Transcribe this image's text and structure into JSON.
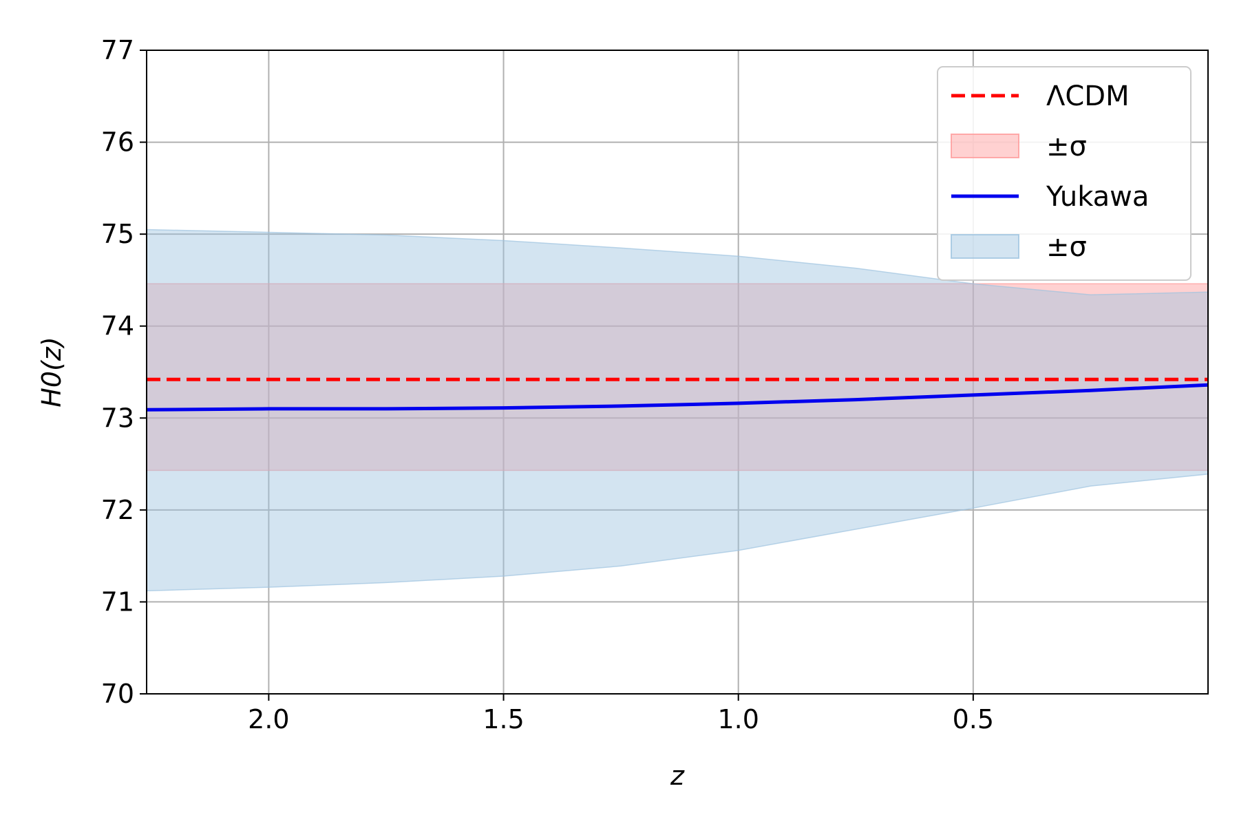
{
  "chart_data": {
    "type": "line",
    "xlabel": "z",
    "ylabel": "H0(z)",
    "x_inverted": true,
    "xlim": [
      2.26,
      0.0
    ],
    "ylim": [
      70,
      77
    ],
    "xticks": [
      2.0,
      1.5,
      1.0,
      0.5
    ],
    "xtick_labels": [
      "2.0",
      "1.5",
      "1.0",
      "0.5"
    ],
    "yticks": [
      70,
      71,
      72,
      73,
      74,
      75,
      76,
      77
    ],
    "ytick_labels": [
      "70",
      "71",
      "72",
      "73",
      "74",
      "75",
      "76",
      "77"
    ],
    "grid": true,
    "legend_position": "top-right",
    "series": [
      {
        "name": "ΛCDM",
        "kind": "line",
        "style": "dashed",
        "color": "#ff0000",
        "x": [
          2.26,
          0.0
        ],
        "y": [
          73.42,
          73.42
        ]
      },
      {
        "name": "±σ",
        "kind": "band",
        "color": "#ff9999",
        "x": [
          2.26,
          0.0
        ],
        "lower": [
          72.43,
          72.43
        ],
        "upper": [
          74.46,
          74.46
        ]
      },
      {
        "name": "Yukawa",
        "kind": "line",
        "style": "solid",
        "color": "#0000ee",
        "x": [
          2.26,
          2.0,
          1.75,
          1.5,
          1.25,
          1.0,
          0.75,
          0.5,
          0.25,
          0.0
        ],
        "y": [
          73.09,
          73.1,
          73.1,
          73.11,
          73.13,
          73.16,
          73.2,
          73.25,
          73.3,
          73.36
        ]
      },
      {
        "name": "±σ",
        "kind": "band",
        "color": "#9ec3e0",
        "x": [
          2.26,
          2.0,
          1.75,
          1.5,
          1.25,
          1.0,
          0.75,
          0.5,
          0.25,
          0.0
        ],
        "lower": [
          71.12,
          71.16,
          71.21,
          71.28,
          71.39,
          71.56,
          71.79,
          72.02,
          72.26,
          72.39
        ],
        "upper": [
          75.05,
          75.02,
          74.99,
          74.93,
          74.85,
          74.76,
          74.63,
          74.46,
          74.34,
          74.37
        ]
      }
    ]
  }
}
